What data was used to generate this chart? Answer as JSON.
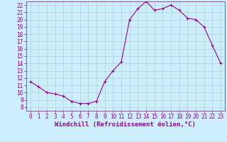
{
  "x": [
    0,
    1,
    2,
    3,
    4,
    5,
    6,
    7,
    8,
    9,
    10,
    11,
    12,
    13,
    14,
    15,
    16,
    17,
    18,
    19,
    20,
    21,
    22,
    23
  ],
  "y": [
    11.5,
    10.8,
    10.0,
    9.8,
    9.5,
    8.8,
    8.5,
    8.5,
    8.8,
    11.5,
    13.0,
    14.2,
    20.0,
    21.5,
    22.5,
    21.3,
    21.5,
    22.0,
    21.3,
    20.2,
    20.0,
    19.0,
    16.5,
    14.0
  ],
  "line_color": "#990099",
  "marker": "+",
  "markersize": 3,
  "linewidth": 0.8,
  "xlabel": "Windchill (Refroidissement éolien,°C)",
  "xlabel_fontsize": 6.5,
  "xlim": [
    -0.5,
    23.5
  ],
  "ylim": [
    7.5,
    22.5
  ],
  "yticks": [
    8,
    9,
    10,
    11,
    12,
    13,
    14,
    15,
    16,
    17,
    18,
    19,
    20,
    21,
    22
  ],
  "xticks": [
    0,
    1,
    2,
    3,
    4,
    5,
    6,
    7,
    8,
    9,
    10,
    11,
    12,
    13,
    14,
    15,
    16,
    17,
    18,
    19,
    20,
    21,
    22,
    23
  ],
  "bg_color": "#cceeff",
  "grid_color": "#aaccbb",
  "tick_color": "#990099",
  "tick_fontsize": 5.5,
  "figsize": [
    3.2,
    2.0
  ],
  "dpi": 100
}
